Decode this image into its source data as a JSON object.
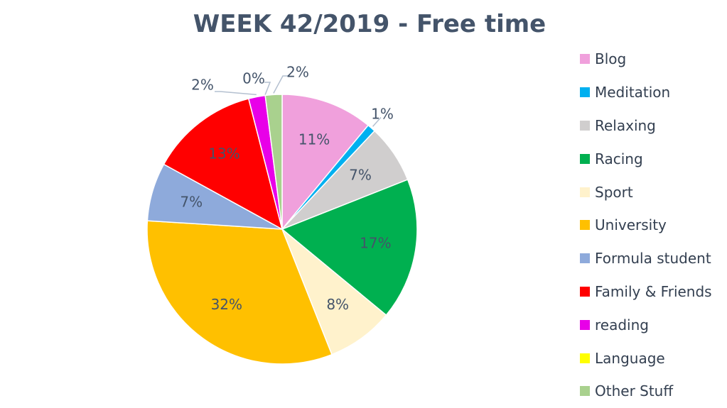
{
  "chart_data": {
    "type": "pie",
    "title": "WEEK 42/2019 - Free time",
    "start_angle_deg": 0,
    "direction": "clockwise",
    "legend_position": "right",
    "slices": [
      {
        "label": "Blog",
        "value": 11,
        "data_label": "11%",
        "color": "#f0a0dc"
      },
      {
        "label": "Meditation",
        "value": 1,
        "data_label": "1%",
        "color": "#00b0f0"
      },
      {
        "label": "Relaxing",
        "value": 7,
        "data_label": "7%",
        "color": "#d0cece"
      },
      {
        "label": "Racing",
        "value": 17,
        "data_label": "17%",
        "color": "#00b050"
      },
      {
        "label": "Sport",
        "value": 8,
        "data_label": "8%",
        "color": "#fff2cc"
      },
      {
        "label": "University",
        "value": 32,
        "data_label": "32%",
        "color": "#ffc000"
      },
      {
        "label": "Formula student",
        "value": 7,
        "data_label": "7%",
        "color": "#8eaadb"
      },
      {
        "label": "Family & Friends",
        "value": 13,
        "data_label": "13%",
        "color": "#ff0000"
      },
      {
        "label": "reading",
        "value": 2,
        "data_label": "2%",
        "color": "#e800e8"
      },
      {
        "label": "Language",
        "value": 0,
        "data_label": "0%",
        "color": "#ffff00"
      },
      {
        "label": "Other Stuff",
        "value": 2,
        "data_label": "2%",
        "color": "#a9d18e"
      }
    ]
  }
}
